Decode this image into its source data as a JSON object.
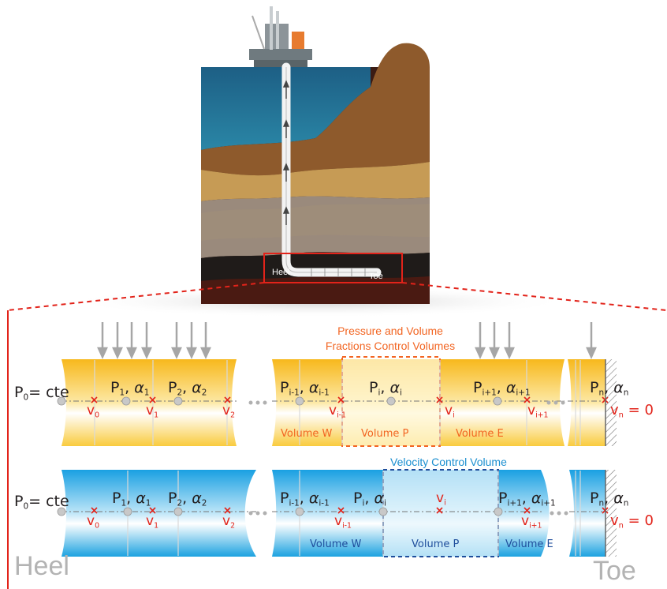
{
  "well": {
    "heel_label": "Heel",
    "toe_label": "Toe"
  },
  "yellow_row": {
    "title_line1": "Pressure and Volume",
    "title_line2": "Fractions Control Volumes",
    "p0": "P",
    "p0_sub": "0",
    "p0_eq": "= cte",
    "cells": [
      {
        "p": "P",
        "p_sub": "1",
        "a": "α",
        "a_sub": "1"
      },
      {
        "p": "P",
        "p_sub": "2",
        "a": "α",
        "a_sub": "2"
      },
      {
        "p": "P",
        "p_sub": "i-1",
        "a": "α",
        "a_sub": "i-1"
      },
      {
        "p": "P",
        "p_sub": "i",
        "a": "α",
        "a_sub": "i"
      },
      {
        "p": "P",
        "p_sub": "i+1",
        "a": "α",
        "a_sub": "i+1"
      },
      {
        "p": "P",
        "p_sub": "n",
        "a": "α",
        "a_sub": "n"
      }
    ],
    "velocities": [
      {
        "v": "v",
        "sub": "0"
      },
      {
        "v": "v",
        "sub": "1"
      },
      {
        "v": "v",
        "sub": "2"
      },
      {
        "v": "v",
        "sub": "i-1"
      },
      {
        "v": "v",
        "sub": "i"
      },
      {
        "v": "v",
        "sub": "i+1"
      }
    ],
    "vn_eq": "v",
    "vn_sub": "n",
    "vn_val": "= 0",
    "volume_w": "Volume W",
    "volume_p": "Volume P",
    "volume_e": "Volume E"
  },
  "blue_row": {
    "title": "Velocity Control Volume",
    "p0": "P",
    "p0_sub": "0",
    "p0_eq": "= cte",
    "cells": [
      {
        "p": "P",
        "p_sub": "1",
        "a": "α",
        "a_sub": "1"
      },
      {
        "p": "P",
        "p_sub": "2",
        "a": "α",
        "a_sub": "2"
      },
      {
        "p": "P",
        "p_sub": "i-1",
        "a": "α",
        "a_sub": "i-1"
      },
      {
        "p": "P",
        "p_sub": "i",
        "a": "α",
        "a_sub": "i"
      },
      {
        "p": "P",
        "p_sub": "i+1",
        "a": "α",
        "a_sub": "i+1"
      },
      {
        "p": "P",
        "p_sub": "n",
        "a": "α",
        "a_sub": "n"
      }
    ],
    "velocities": [
      {
        "v": "v",
        "sub": "0"
      },
      {
        "v": "v",
        "sub": "1"
      },
      {
        "v": "v",
        "sub": "2"
      },
      {
        "v": "v",
        "sub": "i-1"
      },
      {
        "v": "v",
        "sub": "i"
      },
      {
        "v": "v",
        "sub": "i+1"
      }
    ],
    "vn_eq": "v",
    "vn_sub": "n",
    "vn_val": "= 0",
    "volume_w": "Volume W",
    "volume_p": "Volume P",
    "volume_e": "Volume E"
  },
  "bottom": {
    "heel": "Heel",
    "toe": "Toe"
  },
  "colors": {
    "accent_red": "#e2231a",
    "orange": "#f26522",
    "blue_title": "#1b8fd0",
    "dark_blue": "#1f4e9c",
    "yellow": "#f9c433",
    "blue": "#1fa3e0"
  }
}
